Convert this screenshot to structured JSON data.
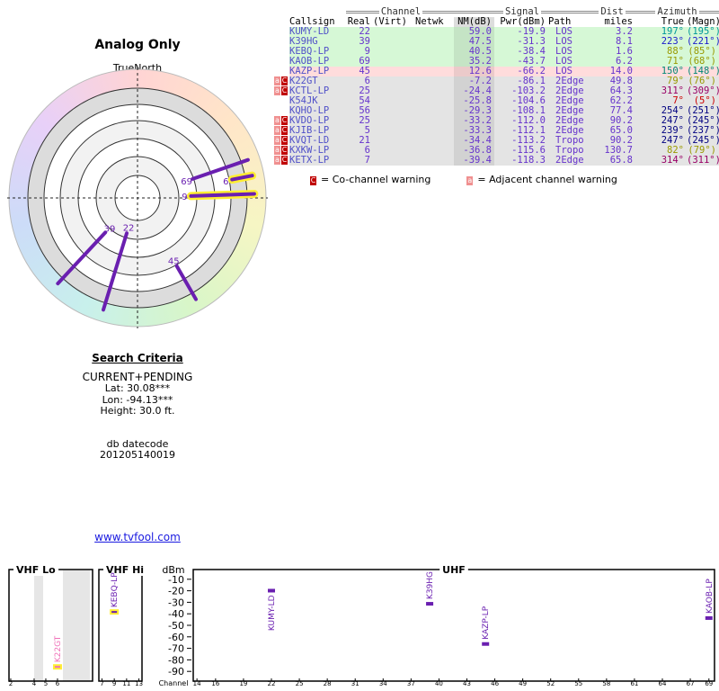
{
  "header": {
    "title": "Analog Only",
    "north_label": "TrueNorth",
    "north_marker": "N"
  },
  "polar": {
    "color": "#6a1fb0",
    "highlight_color": "#ffee33",
    "stations": [
      {
        "label": "22",
        "azimuth": 197,
        "nm": 59.0,
        "highlight": false
      },
      {
        "label": "39",
        "azimuth": 223,
        "nm": 47.5,
        "highlight": false
      },
      {
        "label": "9",
        "azimuth": 88,
        "nm": 40.5,
        "highlight": true
      },
      {
        "label": "69",
        "azimuth": 71,
        "nm": 35.2,
        "highlight": false
      },
      {
        "label": "45",
        "azimuth": 150,
        "nm": 12.6,
        "highlight": false
      },
      {
        "label": "6",
        "azimuth": 79,
        "nm": -7.2,
        "highlight": true
      }
    ]
  },
  "search": {
    "title": "Search Criteria",
    "lines": [
      "CURRENT+PENDING",
      "Lat: 30.08***",
      "Lon: -94.13***",
      "Height: 30.0 ft."
    ],
    "datecode_label": "db datecode",
    "datecode": "201205140019",
    "link": "www.tvfool.com"
  },
  "table": {
    "groups": [
      "Channel",
      "Signal",
      "Dist",
      "Azimuth"
    ],
    "columns": [
      "Callsign",
      "Real",
      "(Virt)",
      "Netwk",
      "NM(dB)",
      "Pwr(dBm)",
      "Path",
      "miles",
      "True",
      "(Magn)"
    ],
    "rows": [
      {
        "callsign": "KUMY-LD",
        "real": "22",
        "nm": "59.0",
        "pwr": "-19.9",
        "path": "LOS",
        "dist": "3.2",
        "az_true": "197°",
        "az_magn": "(195°)",
        "row_color": "#d6f8d6",
        "az_color": "#009999"
      },
      {
        "callsign": "K39HG",
        "real": "39",
        "nm": "47.5",
        "pwr": "-31.3",
        "path": "LOS",
        "dist": "8.1",
        "az_true": "223°",
        "az_magn": "(221°)",
        "row_color": "#d6f8d6",
        "az_color": "#1a1acc"
      },
      {
        "callsign": "KEBQ-LP",
        "real": "9",
        "nm": "40.5",
        "pwr": "-38.4",
        "path": "LOS",
        "dist": "1.6",
        "az_true": "88°",
        "az_magn": "(85°)",
        "row_color": "#d6f8d6",
        "az_color": "#999900"
      },
      {
        "callsign": "KAOB-LP",
        "real": "69",
        "nm": "35.2",
        "pwr": "-43.7",
        "path": "LOS",
        "dist": "6.2",
        "az_true": "71°",
        "az_magn": "(68°)",
        "row_color": "#d6f8d6",
        "az_color": "#999900"
      },
      {
        "callsign": "KAZP-LP",
        "real": "45",
        "nm": "12.6",
        "pwr": "-66.2",
        "path": "LOS",
        "dist": "14.0",
        "az_true": "150°",
        "az_magn": "(148°)",
        "row_color": "#ffdcdc",
        "az_color": "#008877"
      },
      {
        "callsign": "K22GT",
        "real": "6",
        "nm": "-7.2",
        "pwr": "-86.1",
        "path": "2Edge",
        "dist": "49.8",
        "az_true": "79°",
        "az_magn": "(76°)",
        "row_color": "#e4e4e4",
        "az_color": "#999900",
        "flags": [
          "a",
          "C"
        ]
      },
      {
        "callsign": "KCTL-LP",
        "real": "25",
        "nm": "-24.4",
        "pwr": "-103.2",
        "path": "2Edge",
        "dist": "64.3",
        "az_true": "311°",
        "az_magn": "(309°)",
        "row_color": "#e4e4e4",
        "az_color": "#990066",
        "flags": [
          "a",
          "C"
        ]
      },
      {
        "callsign": "K54JK",
        "real": "54",
        "nm": "-25.8",
        "pwr": "-104.6",
        "path": "2Edge",
        "dist": "62.2",
        "az_true": "7°",
        "az_magn": "(5°)",
        "row_color": "#e4e4e4",
        "az_color": "#cc0000"
      },
      {
        "callsign": "KQHO-LP",
        "real": "56",
        "nm": "-29.3",
        "pwr": "-108.1",
        "path": "2Edge",
        "dist": "77.4",
        "az_true": "254°",
        "az_magn": "(251°)",
        "row_color": "#e4e4e4",
        "az_color": "#000080"
      },
      {
        "callsign": "KVDO-LP",
        "real": "25",
        "nm": "-33.2",
        "pwr": "-112.0",
        "path": "2Edge",
        "dist": "90.2",
        "az_true": "247°",
        "az_magn": "(245°)",
        "row_color": "#e4e4e4",
        "az_color": "#000080",
        "flags": [
          "a",
          "C"
        ]
      },
      {
        "callsign": "KJIB-LP",
        "real": "5",
        "nm": "-33.3",
        "pwr": "-112.1",
        "path": "2Edge",
        "dist": "65.0",
        "az_true": "239°",
        "az_magn": "(237°)",
        "row_color": "#e4e4e4",
        "az_color": "#000080",
        "flags": [
          "a",
          "C"
        ]
      },
      {
        "callsign": "KVQT-LD",
        "real": "21",
        "nm": "-34.4",
        "pwr": "-113.2",
        "path": "Tropo",
        "dist": "90.2",
        "az_true": "247°",
        "az_magn": "(245°)",
        "row_color": "#e4e4e4",
        "az_color": "#000080",
        "flags": [
          "a",
          "C"
        ]
      },
      {
        "callsign": "KXKW-LP",
        "real": "6",
        "nm": "-36.8",
        "pwr": "-115.6",
        "path": "Tropo",
        "dist": "130.7",
        "az_true": "82°",
        "az_magn": "(79°)",
        "row_color": "#e4e4e4",
        "az_color": "#999900",
        "flags": [
          "a",
          "C"
        ]
      },
      {
        "callsign": "KETX-LP",
        "real": "7",
        "nm": "-39.4",
        "pwr": "-118.3",
        "path": "2Edge",
        "dist": "65.8",
        "az_true": "314°",
        "az_magn": "(311°)",
        "row_color": "#e4e4e4",
        "az_color": "#990066",
        "flags": [
          "a",
          "C"
        ]
      }
    ]
  },
  "legend": [
    {
      "flag": "C",
      "text": "= Co-channel warning",
      "color": "#c00000"
    },
    {
      "flag": "a",
      "text": "= Adjacent channel warning",
      "color": "#f09090"
    }
  ],
  "spectrum": {
    "y_label": "dBm",
    "x_label": "Channel",
    "ylim": [
      -100,
      0
    ],
    "yticks": [
      -10,
      -20,
      -30,
      -40,
      -50,
      -60,
      -70,
      -80,
      -90
    ],
    "highlight_color": "#ffee33",
    "panels": [
      {
        "title": "VHF Lo",
        "xlim": [
          1.85,
          9
        ],
        "xticks": [
          2,
          4,
          5,
          6
        ],
        "stations": [
          {
            "callsign": "K22GT",
            "channel": 6,
            "dbm": -86.1,
            "color": "#f070b8",
            "highlight": true
          }
        ]
      },
      {
        "title": "VHF Hi",
        "xlim": [
          6.5,
          13.5
        ],
        "xticks": [
          7,
          9,
          11,
          13
        ],
        "stations": [
          {
            "callsign": "KEBQ-LP",
            "channel": 9,
            "dbm": -38.4,
            "color": "#6a1fb0",
            "highlight": true
          }
        ]
      },
      {
        "title": "UHF",
        "xlim": [
          13.6,
          69.6
        ],
        "xticks": [
          14,
          16,
          19,
          22,
          25,
          28,
          31,
          34,
          37,
          40,
          43,
          46,
          49,
          52,
          55,
          58,
          61,
          64,
          67,
          69
        ],
        "stations": [
          {
            "callsign": "KUMY-LD",
            "channel": 22,
            "dbm": -19.9,
            "color": "#6a1fb0",
            "highlight": false
          },
          {
            "callsign": "K39HG",
            "channel": 39,
            "dbm": -31.3,
            "color": "#6a1fb0",
            "highlight": false
          },
          {
            "callsign": "KAZP-LP",
            "channel": 45,
            "dbm": -66.2,
            "color": "#6a1fb0",
            "highlight": false
          },
          {
            "callsign": "KAOB-LP",
            "channel": 69,
            "dbm": -43.7,
            "color": "#6a1fb0",
            "highlight": false
          }
        ]
      }
    ]
  }
}
